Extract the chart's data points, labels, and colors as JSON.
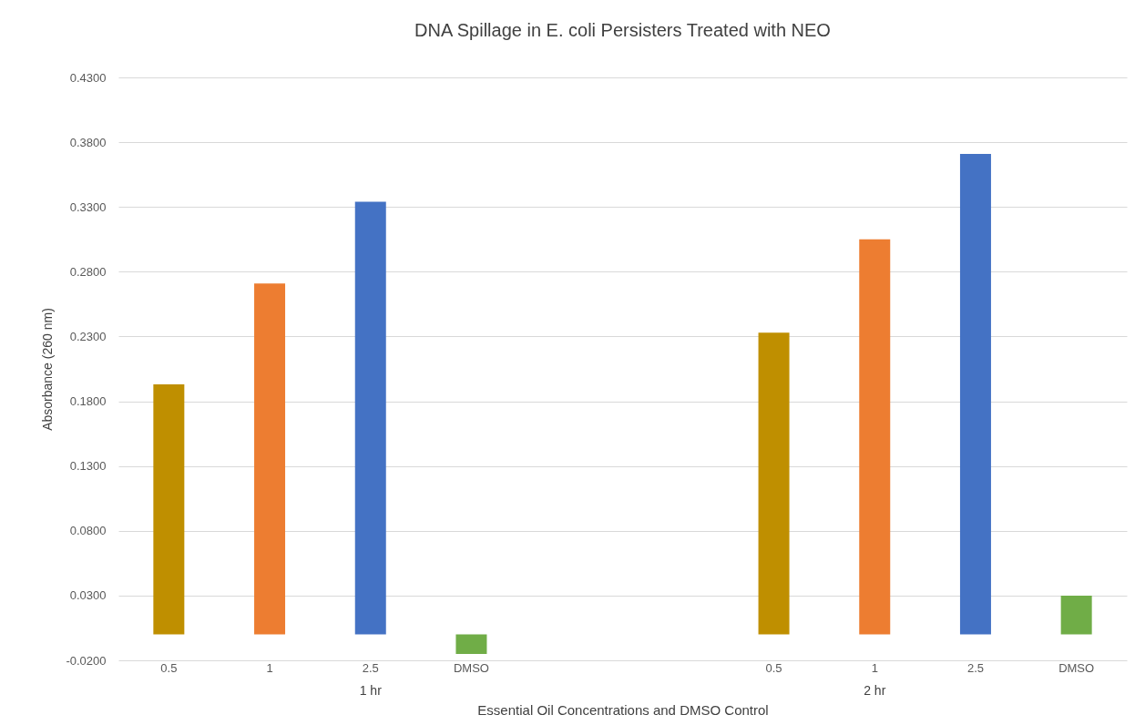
{
  "chart_data": {
    "type": "bar",
    "title": "DNA Spillage in E. coli Persisters Treated with NEO",
    "xlabel": "Essential Oil Concentrations and DMSO Control",
    "ylabel": "Absorbance (260 nm)",
    "categories": [
      "0.5",
      "1",
      "2.5",
      "DMSO",
      null,
      null,
      "0.5",
      "1",
      "2.5",
      "DMSO"
    ],
    "values": [
      0.193,
      0.271,
      0.334,
      -0.015,
      null,
      null,
      0.233,
      0.305,
      0.371,
      0.03
    ],
    "colors": [
      "#bf8f00",
      "#ed7d31",
      "#4472c4",
      "#70ad47",
      null,
      null,
      "#bf8f00",
      "#ed7d31",
      "#4472c4",
      "#70ad47"
    ],
    "ylim": [
      -0.02,
      0.43
    ],
    "yticks": [
      {
        "value": -0.02,
        "label": "-0.0200"
      },
      {
        "value": 0.03,
        "label": "0.0300"
      },
      {
        "value": 0.08,
        "label": "0.0800"
      },
      {
        "value": 0.13,
        "label": "0.1300"
      },
      {
        "value": 0.18,
        "label": "0.1800"
      },
      {
        "value": 0.23,
        "label": "0.2300"
      },
      {
        "value": 0.28,
        "label": "0.2800"
      },
      {
        "value": 0.33,
        "label": "0.3300"
      },
      {
        "value": 0.38,
        "label": "0.3800"
      },
      {
        "value": 0.43,
        "label": "0.4300"
      }
    ],
    "grid": "y",
    "annotations": [
      "1 hr",
      "2 hr"
    ]
  }
}
